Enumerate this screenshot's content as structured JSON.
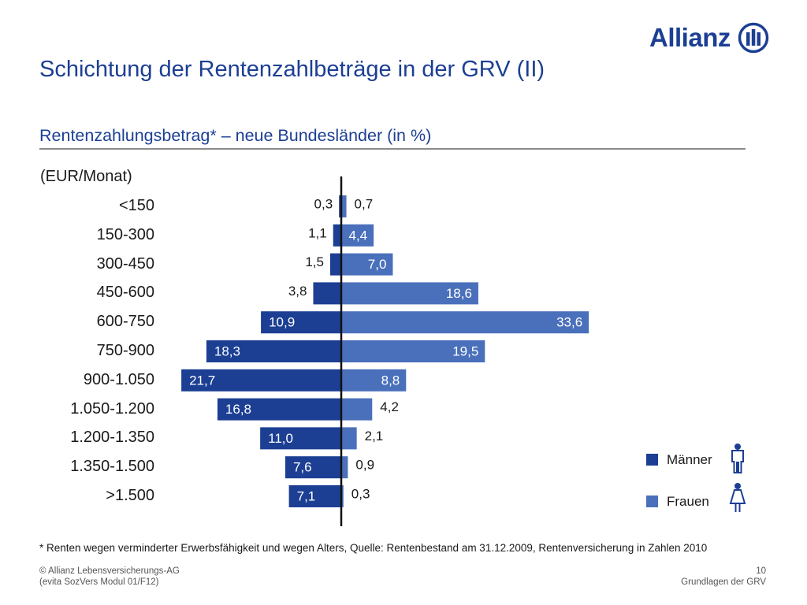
{
  "logo": {
    "text": "Allianz",
    "mark_icon": "allianz-eagle-icon",
    "color": "#1c3f94"
  },
  "title": "Schichtung der Rentenzahlbeträge in der GRV (II)",
  "subtitle": "Rentenzahlungsbetrag* – neue Bundesländer (in %)",
  "unit_label": "(EUR/Monat)",
  "chart_data": {
    "type": "bar",
    "orientation": "horizontal-diverging",
    "categories": [
      "<150",
      "150-300",
      "300-450",
      "450-600",
      "600-750",
      "750-900",
      "900-1.050",
      "1.050-1.200",
      "1.200-1.350",
      "1.350-1.500",
      ">1.500"
    ],
    "series": [
      {
        "name": "Männer",
        "side": "left",
        "color": "#1c3f94",
        "values": [
          0.3,
          1.1,
          1.5,
          3.8,
          10.9,
          18.3,
          21.7,
          16.8,
          11.0,
          7.6,
          7.1
        ],
        "labels": [
          "0,3",
          "1,1",
          "1,5",
          "3,8",
          "10,9",
          "18,3",
          "21,7",
          "16,8",
          "11,0",
          "7,6",
          "7,1"
        ]
      },
      {
        "name": "Frauen",
        "side": "right",
        "color": "#4a70bb",
        "values": [
          0.7,
          4.4,
          7.0,
          18.6,
          33.6,
          19.5,
          8.8,
          4.2,
          2.1,
          0.9,
          0.3
        ],
        "labels": [
          "0,7",
          "4,4",
          "7,0",
          "18,6",
          "33,6",
          "19,5",
          "8,8",
          "4,2",
          "2,1",
          "0,9",
          "0,3"
        ]
      }
    ],
    "legend": {
      "placement": "bottom-right",
      "items": [
        {
          "label": "Männer",
          "icon": "male-person-icon"
        },
        {
          "label": "Frauen",
          "icon": "female-person-icon"
        }
      ]
    }
  },
  "footnote": "*   Renten wegen verminderter Erwerbsfähigkeit und wegen Alters, Quelle: Rentenbestand am 31.12.2009, Rentenversicherung in Zahlen 2010",
  "footer": {
    "copyright": "© Allianz Lebensversicherungs-AG",
    "source": "(evita SozVers Modul 01/F12)",
    "page_number": "10",
    "section": "Grundlagen der GRV"
  }
}
